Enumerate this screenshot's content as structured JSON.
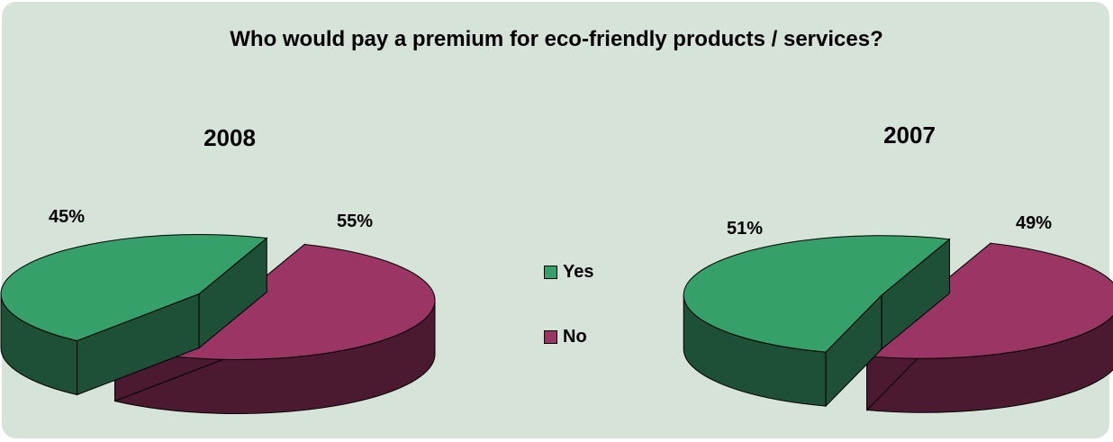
{
  "title": "Who would pay a premium for eco-friendly products / services?",
  "colors": {
    "panel": "#d6e3d8",
    "yes_top": "#35a06a",
    "yes_side": "#1e4f37",
    "no_top": "#9b3563",
    "no_side": "#4b1a31"
  },
  "legend": [
    {
      "label": "Yes",
      "color": "#35a06a"
    },
    {
      "label": "No",
      "color": "#9b3563"
    }
  ],
  "chart_data": [
    {
      "type": "pie",
      "title": "2008",
      "categories": [
        "Yes",
        "No"
      ],
      "values": [
        45,
        55
      ],
      "data_labels": [
        "45%",
        "55%"
      ]
    },
    {
      "type": "pie",
      "title": "2007",
      "categories": [
        "Yes",
        "No"
      ],
      "values": [
        51,
        49
      ],
      "data_labels": [
        "51%",
        "49%"
      ]
    }
  ]
}
